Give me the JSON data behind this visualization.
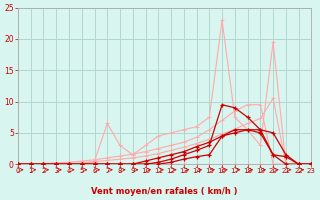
{
  "background_color": "#d8f5f0",
  "grid_color": "#b0d8d0",
  "xlabel": "Vent moyen/en rafales ( km/h )",
  "xlabel_color": "#cc0000",
  "tick_color": "#cc0000",
  "xlim": [
    0,
    23
  ],
  "ylim": [
    0,
    25
  ],
  "xticks": [
    0,
    1,
    2,
    3,
    4,
    5,
    6,
    7,
    8,
    9,
    10,
    11,
    12,
    13,
    14,
    15,
    16,
    17,
    18,
    19,
    20,
    21,
    22,
    23
  ],
  "yticks": [
    0,
    5,
    10,
    15,
    20,
    25
  ],
  "light_color1": "#ffaaaa",
  "light_color2": "#ff9999",
  "dark_color1": "#cc0000",
  "dark_color2": "#dd1111",
  "line_A_x": [
    0,
    1,
    2,
    3,
    4,
    5,
    6,
    7,
    8,
    9,
    10,
    11,
    12,
    13,
    14,
    15,
    16,
    17,
    18,
    19,
    20,
    21,
    22,
    23
  ],
  "line_A_y": [
    0,
    0,
    0,
    0,
    0,
    0,
    0,
    0,
    0,
    0,
    0,
    0,
    0,
    0,
    0,
    0,
    0,
    0,
    0,
    0,
    0,
    0,
    0,
    0
  ],
  "line_B_x": [
    0,
    1,
    2,
    3,
    4,
    5,
    6,
    7,
    8,
    9,
    10,
    11,
    12,
    13,
    14,
    15,
    16,
    17,
    18,
    19,
    20,
    21,
    22,
    23
  ],
  "line_B_y": [
    0,
    0,
    0,
    0,
    0,
    0.2,
    0.4,
    0.6,
    0.8,
    1.0,
    1.3,
    1.7,
    2.2,
    2.7,
    3.3,
    4.0,
    4.8,
    5.6,
    6.5,
    7.3,
    10.5,
    0,
    0,
    0
  ],
  "line_C_x": [
    0,
    1,
    2,
    3,
    4,
    5,
    6,
    7,
    8,
    9,
    10,
    11,
    12,
    13,
    14,
    15,
    16,
    17,
    18,
    19,
    20,
    21,
    22,
    23
  ],
  "line_C_y": [
    0,
    0,
    0.1,
    0.2,
    0.3,
    0.5,
    0.7,
    1.0,
    1.3,
    1.6,
    2.0,
    2.5,
    3.0,
    3.5,
    4.3,
    5.5,
    7.0,
    8.5,
    9.5,
    9.5,
    0,
    0,
    0,
    0
  ],
  "line_D_x": [
    0,
    4,
    5,
    6,
    7,
    8,
    9,
    10,
    11,
    12,
    13,
    14,
    15,
    16,
    17,
    18,
    19,
    20,
    21,
    22,
    23
  ],
  "line_D_y": [
    0,
    0,
    0,
    0.5,
    6.5,
    3.0,
    1.5,
    3.0,
    4.5,
    5.0,
    5.5,
    6.0,
    7.5,
    23.0,
    7.5,
    5.5,
    3.0,
    19.5,
    0,
    0,
    0
  ],
  "line_E_x": [
    0,
    1,
    2,
    3,
    4,
    5,
    6,
    7,
    8,
    9,
    10,
    11,
    12,
    13,
    14,
    15,
    16,
    17,
    18,
    19,
    20,
    21,
    22,
    23
  ],
  "line_E_y": [
    0,
    0,
    0,
    0,
    0,
    0,
    0,
    0,
    0,
    0,
    0.5,
    1.0,
    1.5,
    2.0,
    2.8,
    3.5,
    4.5,
    5.0,
    5.5,
    5.5,
    5.0,
    1.5,
    0,
    0
  ],
  "line_F_x": [
    0,
    1,
    2,
    3,
    4,
    5,
    6,
    7,
    8,
    9,
    10,
    11,
    12,
    13,
    14,
    15,
    16,
    17,
    18,
    19,
    20,
    21,
    22,
    23
  ],
  "line_F_y": [
    0,
    0,
    0,
    0,
    0,
    0,
    0,
    0,
    0,
    0,
    0,
    0.3,
    0.8,
    1.5,
    2.2,
    3.0,
    9.5,
    9.0,
    7.5,
    5.5,
    1.5,
    0,
    0,
    0
  ],
  "line_G_x": [
    0,
    1,
    2,
    3,
    4,
    5,
    6,
    7,
    8,
    9,
    10,
    11,
    12,
    13,
    14,
    15,
    16,
    17,
    18,
    19,
    20,
    21,
    22,
    23
  ],
  "line_G_y": [
    0,
    0,
    0,
    0,
    0,
    0,
    0,
    0,
    0,
    0,
    0,
    0,
    0.3,
    0.8,
    1.2,
    1.5,
    4.5,
    5.5,
    5.5,
    5.0,
    1.5,
    1.2,
    0,
    0
  ]
}
